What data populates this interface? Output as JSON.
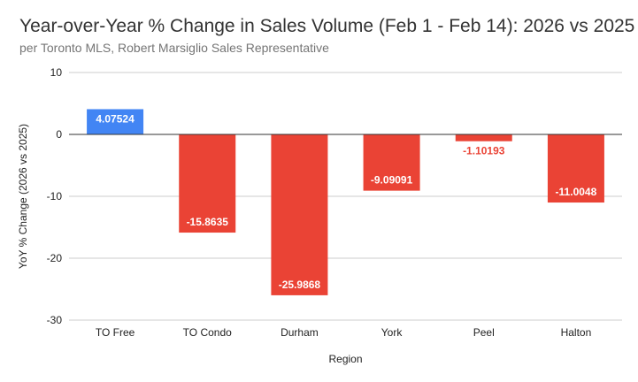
{
  "chart_data": {
    "type": "bar",
    "title": "Year-over-Year % Change in Sales Volume (Feb 1 - Feb 14): 2026 vs 2025",
    "subtitle": "per Toronto MLS, Robert Marsiglio Sales Representative",
    "xlabel": "Region",
    "ylabel": "YoY % Change (2026 vs 2025)",
    "categories": [
      "TO Free",
      "TO Condo",
      "Durham",
      "York",
      "Peel",
      "Halton"
    ],
    "values": [
      4.07524,
      -15.8635,
      -25.9868,
      -9.09091,
      -1.10193,
      -11.0048
    ],
    "data_labels": [
      "4.07524",
      "-15.8635",
      "-25.9868",
      "-9.09091",
      "-1.10193",
      "-11.0048"
    ],
    "ylim": [
      -30,
      10
    ],
    "yticks": [
      10,
      0,
      -10,
      -20,
      -30
    ],
    "grid": true,
    "legend": "none",
    "colors": {
      "positive": "#4285f4",
      "negative": "#ea4335",
      "grid": "#cccccc",
      "zero_line": "#333333"
    }
  }
}
